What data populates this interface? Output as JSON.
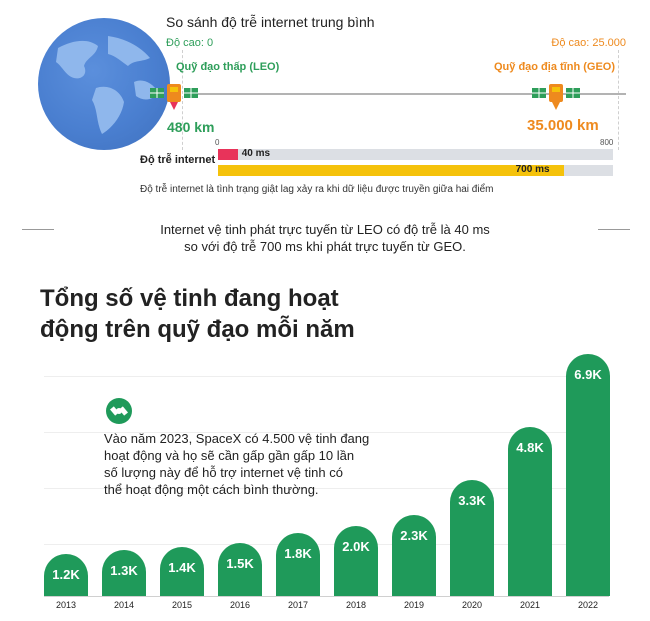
{
  "header": {
    "title": "So sánh độ trễ internet trung bình",
    "alt_left": "Độ cao: 0",
    "alt_right": "Độ cao: 25.000",
    "leo_label": "Quỹ đạo thấp (LEO)",
    "geo_label": "Quỹ đạo địa tĩnh (GEO)",
    "km_left": "480 km",
    "km_right": "35.000 km"
  },
  "latency": {
    "label": "Độ trễ internet",
    "axis_min": "0",
    "axis_max": "800",
    "max_value": 800,
    "bars": [
      {
        "value": 40,
        "text": "40 ms",
        "color": "#e8335a"
      },
      {
        "value": 700,
        "text": "700 ms",
        "color": "#f5c20b"
      }
    ],
    "note": "Độ trễ internet là tình trạng giật lag xảy ra khi dữ liệu được truyền giữa hai điểm"
  },
  "sentence": {
    "line1": "Internet vệ tinh phát trực tuyến từ LEO có độ trễ là 40 ms",
    "line2": "so với độ trễ 700 ms khi phát trực tuyến từ GEO."
  },
  "section_title": {
    "line1": "Tổng số vệ tinh đang hoạt",
    "line2": "động trên quỹ đạo mỗi năm"
  },
  "info": {
    "line1": "Vào năm 2023, SpaceX có 4.500 vệ tinh đang",
    "line2": "hoạt động và họ sẽ cần gấp gần gấp 10 lần",
    "line3": "số lượng này để hỗ trợ internet vệ tinh có",
    "line4": "thể hoạt động một cách bình thường."
  },
  "colors": {
    "green": "#1f9a5a",
    "leo_green": "#2e9e5a",
    "geo_orange": "#ee8a1e"
  },
  "chart_data": {
    "type": "bar",
    "title": "Tổng số vệ tinh đang hoạt động trên quỹ đạo mỗi năm",
    "categories": [
      "2013",
      "2014",
      "2015",
      "2016",
      "2017",
      "2018",
      "2019",
      "2020",
      "2021",
      "2022"
    ],
    "values": [
      1.2,
      1.3,
      1.4,
      1.5,
      1.8,
      2.0,
      2.3,
      3.3,
      4.8,
      6.9
    ],
    "labels": [
      "1.2K",
      "1.3K",
      "1.4K",
      "1.5K",
      "1.8K",
      "2.0K",
      "2.3K",
      "3.3K",
      "4.8K",
      "6.9K"
    ],
    "unit": "K",
    "ylim": [
      0,
      7.2
    ],
    "grid": true,
    "xlabel": "",
    "ylabel": ""
  }
}
